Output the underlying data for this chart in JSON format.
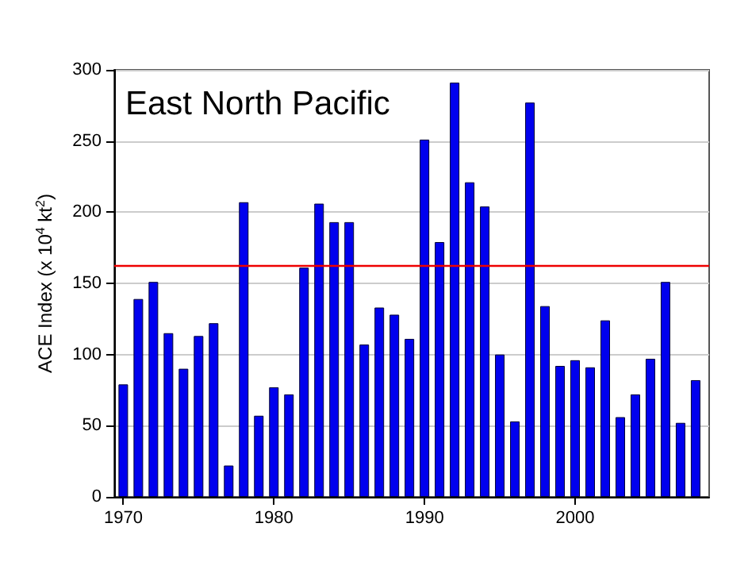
{
  "chart_data": {
    "type": "bar",
    "title": "East North Pacific",
    "ylabel": "ACE Index (x 10$^{4}$ kt$^{2}$)",
    "x": [
      1970,
      1971,
      1972,
      1973,
      1974,
      1975,
      1976,
      1977,
      1978,
      1979,
      1980,
      1981,
      1982,
      1983,
      1984,
      1985,
      1986,
      1987,
      1988,
      1989,
      1990,
      1991,
      1992,
      1993,
      1994,
      1995,
      1996,
      1997,
      1998,
      1999,
      2000,
      2001,
      2002,
      2003,
      2004,
      2005,
      2006,
      2007,
      2008
    ],
    "values": [
      79,
      139,
      151,
      115,
      90,
      113,
      122,
      22,
      207,
      57,
      77,
      72,
      161,
      206,
      193,
      193,
      107,
      133,
      128,
      111,
      251,
      179,
      291,
      221,
      204,
      100,
      53,
      277,
      134,
      92,
      96,
      91,
      124,
      56,
      72,
      97,
      151,
      52,
      82
    ],
    "color": "#0000ee",
    "xlim": [
      1969.4,
      2008.9
    ],
    "xticks": [
      1970,
      1980,
      1990,
      2000
    ],
    "ylim": [
      0,
      300
    ],
    "yticks": [
      0,
      50,
      100,
      150,
      200,
      250,
      300
    ],
    "grid": "y",
    "ref_lines": [
      {
        "axis": "y",
        "value": 162,
        "color": "#ee0000"
      }
    ]
  }
}
